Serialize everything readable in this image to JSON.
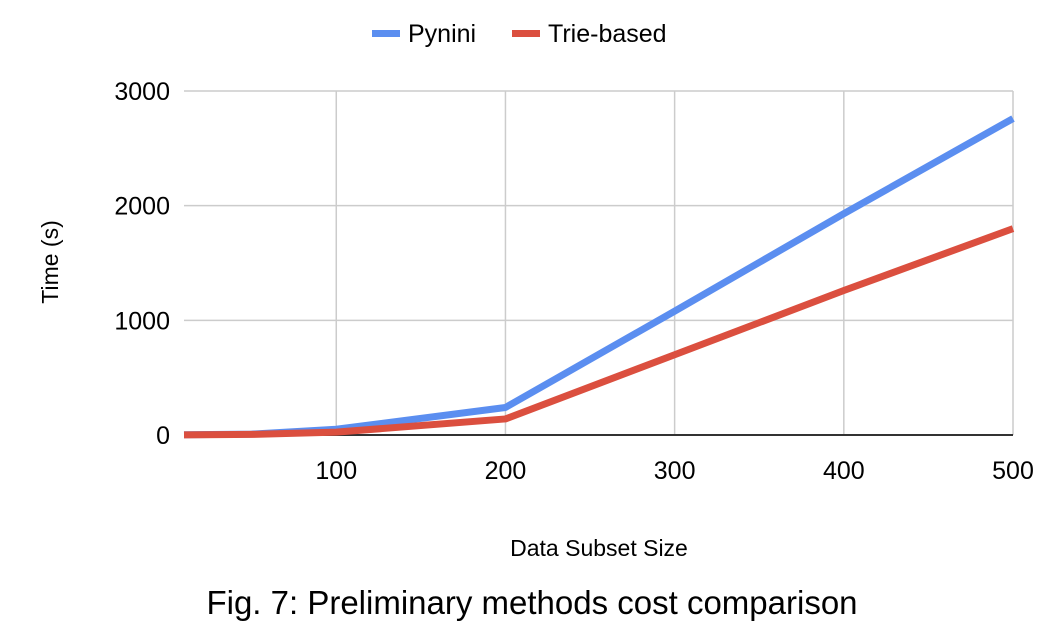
{
  "chart_data": {
    "type": "line",
    "x": [
      10,
      50,
      100,
      200,
      300,
      400,
      500
    ],
    "series": [
      {
        "name": "Pynini",
        "color": "#5b8ef0",
        "values": [
          2,
          8,
          50,
          240,
          1080,
          1930,
          2760
        ]
      },
      {
        "name": "Trie-based",
        "color": "#db4f3f",
        "values": [
          1,
          5,
          25,
          140,
          700,
          1260,
          1800
        ]
      }
    ],
    "xlabel": "Data Subset Size",
    "ylabel": "Time (s)",
    "xlim": [
      10,
      500
    ],
    "ylim": [
      0,
      3000
    ],
    "xticks": [
      100,
      200,
      300,
      400,
      500
    ],
    "yticks": [
      0,
      1000,
      2000,
      3000
    ],
    "grid": true,
    "legend_position": "top"
  },
  "caption": "Fig. 7: Preliminary methods cost comparison"
}
